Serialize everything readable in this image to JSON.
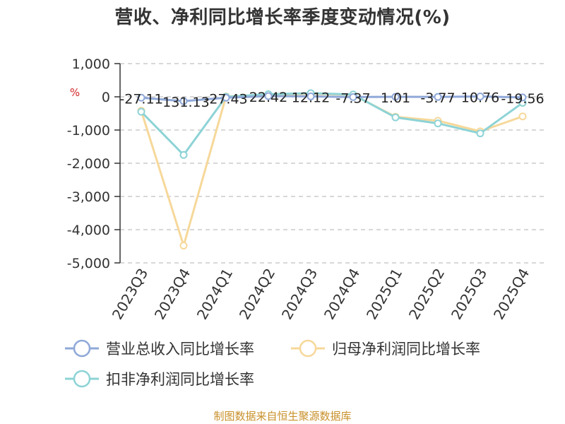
{
  "chart_data": {
    "type": "line",
    "title": "营收、净利同比增长率季度变动情况(%)",
    "unit": "%",
    "categories": [
      "2023Q3",
      "2023Q4",
      "2024Q1",
      "2024Q2",
      "2024Q3",
      "2024Q4",
      "2025Q1",
      "2025Q2",
      "2025Q3",
      "2025Q4"
    ],
    "ylim": [
      -5000,
      1000
    ],
    "yticks": [
      1000,
      0,
      -1000,
      -2000,
      -3000,
      -4000,
      -5000
    ],
    "ytick_labels": [
      "1,000",
      "0",
      "-1,000",
      "-2,000",
      "-3,000",
      "-4,000",
      "-5,000"
    ],
    "grid": true,
    "legend_position": "bottom",
    "series": [
      {
        "name": "营业总收入同比增长率",
        "color": "#8fa8d8",
        "values": [
          -27.11,
          -131.13,
          -27.43,
          22.42,
          12.12,
          -7.37,
          1.01,
          -3.77,
          10.76,
          -19.56
        ],
        "labels": [
          "-27.11",
          "-131.13",
          "-27.43",
          "22.42",
          "12.12",
          "-7.37",
          "1.01",
          "-3.77",
          "10.76",
          "-19.56"
        ]
      },
      {
        "name": "归母净利润同比增长率",
        "color": "#f6d89a",
        "values": [
          -420,
          -4480,
          10,
          60,
          90,
          60,
          -600,
          -720,
          -1040,
          -590
        ]
      },
      {
        "name": "扣非净利润同比增长率",
        "color": "#8dd3d6",
        "values": [
          -450,
          -1750,
          0,
          80,
          110,
          70,
          -620,
          -800,
          -1100,
          -180
        ]
      }
    ]
  },
  "source_text": "制图数据来自恒生聚源数据库"
}
